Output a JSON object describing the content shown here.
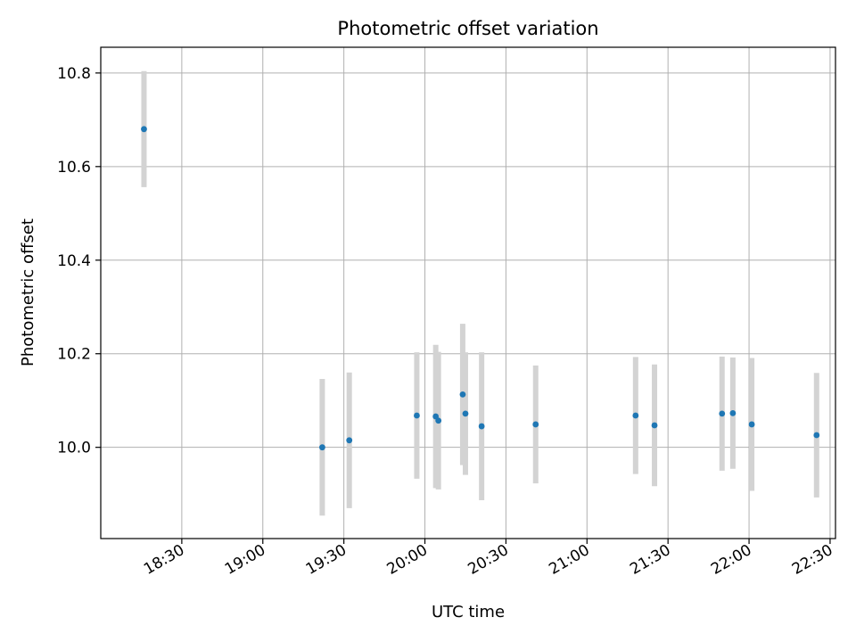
{
  "chart_data": {
    "type": "scatter",
    "title": "Photometric offset variation",
    "xlabel": "UTC time",
    "ylabel": "Photometric offset",
    "x_is_time": true,
    "xlim": [
      "18:00",
      "22:32"
    ],
    "ylim": [
      9.805,
      10.855
    ],
    "xticks": [
      "18:30",
      "19:00",
      "19:30",
      "20:00",
      "20:30",
      "21:00",
      "21:30",
      "22:00",
      "22:30"
    ],
    "yticks": [
      10.0,
      10.2,
      10.4,
      10.6,
      10.8
    ],
    "ytick_labels": [
      "10.0",
      "10.2",
      "10.4",
      "10.6",
      "10.8"
    ],
    "grid": true,
    "marker_color": "#1f77b4",
    "errorbar_color": "#d3d3d3",
    "points": [
      {
        "t": "18:16",
        "y": 10.68,
        "err": 0.124
      },
      {
        "t": "19:22",
        "y": 10.0,
        "err": 0.146
      },
      {
        "t": "19:32",
        "y": 10.015,
        "err": 0.145
      },
      {
        "t": "19:57",
        "y": 10.068,
        "err": 0.135
      },
      {
        "t": "20:04",
        "y": 10.066,
        "err": 0.153
      },
      {
        "t": "20:05",
        "y": 10.057,
        "err": 0.147
      },
      {
        "t": "20:14",
        "y": 10.113,
        "err": 0.151
      },
      {
        "t": "20:15",
        "y": 10.072,
        "err": 0.131
      },
      {
        "t": "20:21",
        "y": 10.045,
        "err": 0.158
      },
      {
        "t": "20:41",
        "y": 10.049,
        "err": 0.126
      },
      {
        "t": "21:18",
        "y": 10.068,
        "err": 0.125
      },
      {
        "t": "21:25",
        "y": 10.047,
        "err": 0.13
      },
      {
        "t": "21:50",
        "y": 10.072,
        "err": 0.122
      },
      {
        "t": "21:54",
        "y": 10.073,
        "err": 0.119
      },
      {
        "t": "22:01",
        "y": 10.049,
        "err": 0.142
      },
      {
        "t": "22:25",
        "y": 10.026,
        "err": 0.133
      }
    ]
  }
}
